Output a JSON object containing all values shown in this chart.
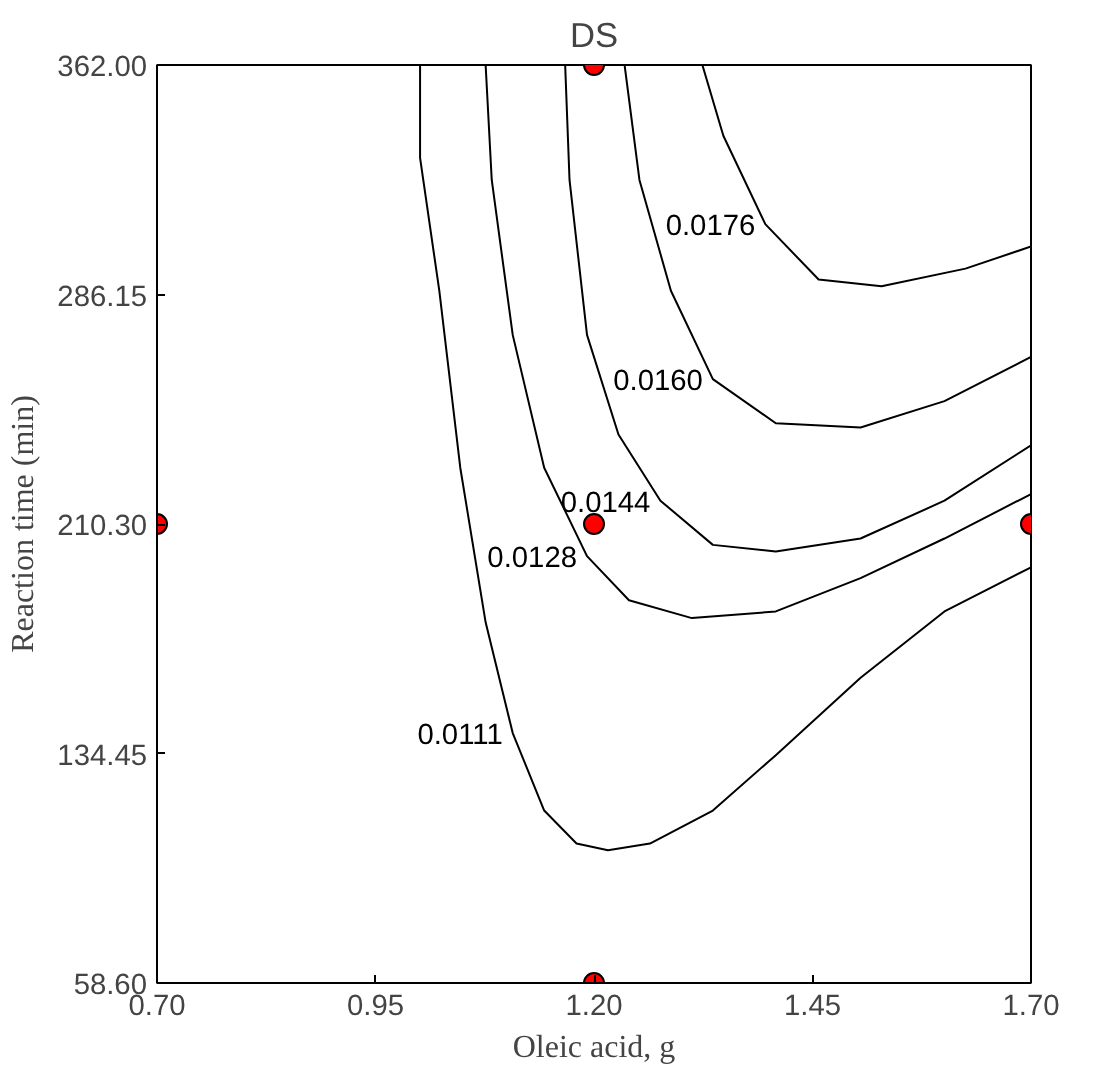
{
  "chart_data": {
    "type": "line",
    "title": "DS",
    "xlabel": "Oleic acid, g",
    "ylabel": "Reaction time (min)",
    "xlim": [
      0.7,
      1.7
    ],
    "ylim": [
      58.6,
      362.0
    ],
    "xticks": [
      {
        "value": 0.7,
        "label": "0.70"
      },
      {
        "value": 0.95,
        "label": "0.95"
      },
      {
        "value": 1.2,
        "label": "1.20"
      },
      {
        "value": 1.45,
        "label": "1.45"
      },
      {
        "value": 1.7,
        "label": "1.70"
      }
    ],
    "yticks": [
      {
        "value": 58.6,
        "label": "58.60"
      },
      {
        "value": 134.45,
        "label": "134.45"
      },
      {
        "value": 210.3,
        "label": "210.30"
      },
      {
        "value": 286.15,
        "label": "286.15"
      },
      {
        "value": 362.0,
        "label": "362.00"
      }
    ],
    "grid": false,
    "marker": "none",
    "line_style": "solid",
    "series": [
      {
        "name": "0.0111",
        "color": "#000000",
        "x": [
          1.001,
          1.001,
          1.023,
          1.047,
          1.076,
          1.107,
          1.143,
          1.18,
          1.216,
          1.264,
          1.336,
          1.408,
          1.505,
          1.601,
          1.7
        ],
        "values": [
          362,
          331.3,
          287.4,
          228.9,
          177.8,
          141.2,
          115.6,
          104.7,
          102.5,
          104.7,
          115.6,
          133.9,
          159.5,
          181.4,
          196.0
        ]
      },
      {
        "name": "0.0128",
        "color": "#000000",
        "x": [
          1.076,
          1.083,
          1.107,
          1.143,
          1.192,
          1.24,
          1.312,
          1.408,
          1.505,
          1.601,
          1.7
        ],
        "values": [
          362,
          324.0,
          272.8,
          228.9,
          199.7,
          185.1,
          179.2,
          181.4,
          192.4,
          205.5,
          220.2
        ]
      },
      {
        "name": "0.0144",
        "color": "#000000",
        "x": [
          1.167,
          1.172,
          1.192,
          1.228,
          1.276,
          1.336,
          1.408,
          1.505,
          1.601,
          1.7
        ],
        "values": [
          362,
          324.0,
          272.8,
          239.9,
          218.0,
          203.4,
          201.2,
          205.5,
          218.0,
          236.3
        ]
      },
      {
        "name": "0.0160",
        "color": "#000000",
        "x": [
          1.235,
          1.252,
          1.288,
          1.336,
          1.408,
          1.505,
          1.601,
          1.7
        ],
        "values": [
          362,
          324.0,
          287.4,
          258.2,
          243.6,
          242.2,
          250.9,
          265.5
        ]
      },
      {
        "name": "0.0176",
        "color": "#000000",
        "x": [
          1.324,
          1.348,
          1.396,
          1.457,
          1.529,
          1.625,
          1.7
        ],
        "values": [
          362,
          338.6,
          309.4,
          291.1,
          288.9,
          294.7,
          302.0
        ]
      },
      {
        "type": "scatter",
        "marker": "circle",
        "color": "#ff0000",
        "x": [
          0.7,
          1.2,
          1.2,
          1.2,
          1.7
        ],
        "values": [
          210.3,
          362.0,
          210.3,
          58.6,
          210.3
        ]
      }
    ]
  }
}
